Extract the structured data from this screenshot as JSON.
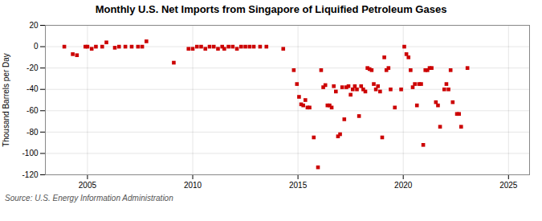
{
  "chart_data": {
    "type": "scatter",
    "title": "Monthly U.S. Net Imports from Singapore of Liquified Petroleum Gases",
    "ylabel": "Thousand Barrels per Day",
    "source": "Source: U.S. Energy Information Administration",
    "color": "#cc0000",
    "marker": "square",
    "grid": true,
    "xlim": [
      2003.0,
      2026.0
    ],
    "ylim": [
      -120,
      20
    ],
    "yticks": [
      20,
      0,
      -20,
      -40,
      -60,
      -80,
      -100,
      -120
    ],
    "xticks": [
      2005,
      2010,
      2015,
      2020,
      2025
    ],
    "x": [
      2003.9,
      2004.3,
      2004.5,
      2004.9,
      2005.0,
      2005.2,
      2005.4,
      2005.7,
      2005.9,
      2006.3,
      2006.5,
      2006.8,
      2007.1,
      2007.4,
      2007.6,
      2007.8,
      2009.1,
      2009.8,
      2010.0,
      2010.2,
      2010.4,
      2010.6,
      2010.8,
      2011.0,
      2011.2,
      2011.4,
      2011.5,
      2011.7,
      2011.9,
      2012.1,
      2012.3,
      2012.5,
      2012.7,
      2012.9,
      2013.2,
      2013.5,
      2014.3,
      2014.8,
      2014.95,
      2015.05,
      2015.15,
      2015.25,
      2015.35,
      2015.45,
      2015.55,
      2015.75,
      2015.95,
      2016.1,
      2016.2,
      2016.3,
      2016.4,
      2016.5,
      2016.6,
      2016.7,
      2016.8,
      2016.9,
      2017.0,
      2017.1,
      2017.2,
      2017.3,
      2017.4,
      2017.5,
      2017.6,
      2017.7,
      2017.8,
      2017.9,
      2018.0,
      2018.1,
      2018.2,
      2018.3,
      2018.4,
      2018.5,
      2018.6,
      2018.7,
      2018.8,
      2018.9,
      2019.0,
      2019.1,
      2019.2,
      2019.3,
      2019.4,
      2019.6,
      2019.9,
      2020.05,
      2020.15,
      2020.25,
      2020.35,
      2020.45,
      2020.55,
      2020.65,
      2020.75,
      2020.85,
      2020.95,
      2021.05,
      2021.15,
      2021.25,
      2021.35,
      2021.55,
      2021.65,
      2021.75,
      2021.95,
      2022.05,
      2022.15,
      2022.25,
      2022.35,
      2022.55,
      2022.65,
      2022.75,
      2023.05
    ],
    "values": [
      0,
      -7,
      -8,
      0,
      0,
      -2,
      0,
      0,
      4,
      -1,
      0,
      0,
      0,
      0,
      0,
      5,
      -15,
      -2,
      -2,
      0,
      0,
      -2,
      0,
      0,
      -2,
      0,
      -2,
      0,
      0,
      -2,
      0,
      0,
      0,
      0,
      0,
      0,
      -2,
      -22,
      -35,
      -47,
      -54,
      -55,
      -50,
      -57,
      -57,
      -85,
      -113,
      -22,
      -38,
      -36,
      -55,
      -55,
      -57,
      -37,
      -42,
      -84,
      -82,
      -38,
      -68,
      -38,
      -37,
      -45,
      -40,
      -37,
      -40,
      -65,
      -37,
      -40,
      -42,
      -20,
      -21,
      -22,
      -35,
      -40,
      -37,
      -42,
      -85,
      -10,
      -22,
      -20,
      -40,
      -57,
      -40,
      0,
      -7,
      -10,
      -22,
      -38,
      -35,
      -55,
      -35,
      -35,
      -92,
      -22,
      -22,
      -20,
      -20,
      -52,
      -55,
      -75,
      -40,
      -35,
      -40,
      -22,
      -52,
      -63,
      -63,
      -75,
      -20
    ]
  }
}
